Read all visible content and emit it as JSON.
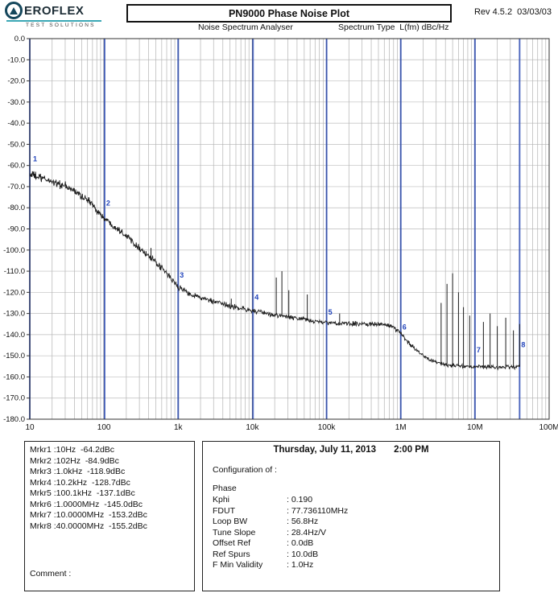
{
  "header": {
    "brand": "EROFLEX",
    "brand_tagline": "TEST SOLUTIONS",
    "title": "PN9000 Phase Noise Plot",
    "rev": "Rev 4.5.2  03/03/03",
    "analyser_label": "Noise Spectrum Analyser",
    "spectrum_type_label": "Spectrum Type  L(fm) dBc/Hz"
  },
  "chart_data": {
    "type": "line",
    "title": "PN9000 Phase Noise Plot",
    "xlabel": "",
    "ylabel": "L(fm) dBc/Hz",
    "x_scale": "log",
    "x_range": [
      10,
      100000000
    ],
    "ylim": [
      -180,
      0
    ],
    "grid": true,
    "x_ticks": [
      {
        "f": 10,
        "label": "10"
      },
      {
        "f": 100,
        "label": "100"
      },
      {
        "f": 1000,
        "label": "1k"
      },
      {
        "f": 10000,
        "label": "10k"
      },
      {
        "f": 100000,
        "label": "100k"
      },
      {
        "f": 1000000,
        "label": "1M"
      },
      {
        "f": 10000000,
        "label": "10M"
      },
      {
        "f": 100000000,
        "label": "100M"
      }
    ],
    "y_ticks": [
      "0.0",
      "-10.0",
      "-20.0",
      "-30.0",
      "-40.0",
      "-50.0",
      "-60.0",
      "-70.0",
      "-80.0",
      "-90.0",
      "-100.0",
      "-110.0",
      "-120.0",
      "-130.0",
      "-140.0",
      "-150.0",
      "-160.0",
      "-170.0",
      "-180.0"
    ],
    "measured_points": [
      [
        10,
        -64.2
      ],
      [
        102,
        -84.9
      ],
      [
        1000,
        -118.9
      ],
      [
        10200,
        -128.7
      ],
      [
        100100,
        -137.1
      ],
      [
        1000000,
        -145.0
      ],
      [
        10000000,
        -153.2
      ],
      [
        40000000,
        -155.2
      ]
    ],
    "curve_anchors": [
      [
        10,
        -64,
        2.4
      ],
      [
        14,
        -66,
        2.4
      ],
      [
        20,
        -67.5,
        2.3
      ],
      [
        30,
        -70,
        2.3
      ],
      [
        40,
        -72,
        2.2
      ],
      [
        63,
        -77,
        2.1
      ],
      [
        80,
        -81,
        2.0
      ],
      [
        100,
        -85,
        1.9
      ],
      [
        130,
        -88,
        1.9
      ],
      [
        200,
        -93,
        1.8
      ],
      [
        300,
        -99,
        1.8
      ],
      [
        500,
        -106,
        1.7
      ],
      [
        700,
        -111,
        1.7
      ],
      [
        1000,
        -117.5,
        1.6
      ],
      [
        1400,
        -120.5,
        1.5
      ],
      [
        2000,
        -122.5,
        1.5
      ],
      [
        3000,
        -124.5,
        1.5
      ],
      [
        5000,
        -126.5,
        1.4
      ],
      [
        7000,
        -127.5,
        1.4
      ],
      [
        10000,
        -128.7,
        1.4
      ],
      [
        15000,
        -130,
        1.35
      ],
      [
        25000,
        -131.2,
        1.35
      ],
      [
        40000,
        -132.3,
        1.3
      ],
      [
        60000,
        -133.3,
        1.3
      ],
      [
        100000,
        -134.4,
        1.3
      ],
      [
        150000,
        -134.8,
        1.25
      ],
      [
        250000,
        -134.9,
        1.25
      ],
      [
        400000,
        -134.9,
        1.25
      ],
      [
        600000,
        -135.3,
        1.2
      ],
      [
        800000,
        -136.5,
        1.2
      ],
      [
        1000000,
        -139.5,
        1.2
      ],
      [
        1250000,
        -143.5,
        1.15
      ],
      [
        1600000,
        -147,
        1.15
      ],
      [
        2000000,
        -149.8,
        1.1
      ],
      [
        2500000,
        -151.8,
        1.1
      ],
      [
        3200000,
        -153.3,
        1.1
      ],
      [
        4000000,
        -154.3,
        1.1
      ],
      [
        6000000,
        -154.9,
        1.1
      ],
      [
        10000000,
        -155.2,
        1.1
      ],
      [
        20000000,
        -155.4,
        1.1
      ],
      [
        40000000,
        -155.2,
        1.1
      ]
    ],
    "trace_fmax": 40000000,
    "spurs": [
      [
        62,
        -75
      ],
      [
        430,
        -99
      ],
      [
        5200,
        -123
      ],
      [
        21000,
        -113
      ],
      [
        25000,
        -110
      ],
      [
        31000,
        -119
      ],
      [
        55000,
        -121
      ],
      [
        150000,
        -130
      ],
      [
        3500000,
        -125
      ],
      [
        4200000,
        -116
      ],
      [
        5000000,
        -111
      ],
      [
        6000000,
        -120
      ],
      [
        7000000,
        -127
      ],
      [
        8500000,
        -131
      ],
      [
        13000000,
        -134
      ],
      [
        16000000,
        -130
      ],
      [
        20000000,
        -136
      ],
      [
        26000000,
        -132
      ],
      [
        33000000,
        -138
      ],
      [
        40000000,
        -135
      ]
    ],
    "marker_lines": [
      10,
      102,
      1000,
      10200,
      100100,
      1000000,
      10000000,
      40000000
    ],
    "marker_points": [
      {
        "n": "1",
        "f": 10.5,
        "db_label": -58
      },
      {
        "n": "2",
        "f": 102,
        "db_label": -79
      },
      {
        "n": "3",
        "f": 1000,
        "db_label": -113
      },
      {
        "n": "4",
        "f": 10200,
        "db_label": -123.5
      },
      {
        "n": "5",
        "f": 100100,
        "db_label": -130.5
      },
      {
        "n": "6",
        "f": 1000000,
        "db_label": -137.5
      },
      {
        "n": "7",
        "f": 10000000,
        "db_label": -148.5
      },
      {
        "n": "8",
        "f": 40000000,
        "db_label": -146
      }
    ],
    "colors": {
      "marker_line": "#3050b8",
      "trace": "#1c1c1c",
      "marker_label": "#2244bb",
      "grid_minor": "#b3b3b3",
      "grid_major": "#555555"
    },
    "legend": "none"
  },
  "markers_panel": {
    "rows": [
      {
        "name": "Mrkr1",
        "freq": "10Hz",
        "level": "-64.2dBc"
      },
      {
        "name": "Mrkr2",
        "freq": "102Hz",
        "level": "-84.9dBc"
      },
      {
        "name": "Mrkr3",
        "freq": "1.0kHz",
        "level": "-118.9dBc"
      },
      {
        "name": "Mrkr4",
        "freq": "10.2kHz",
        "level": "-128.7dBc"
      },
      {
        "name": "Mrkr5",
        "freq": "100.1kHz",
        "level": "-137.1dBc"
      },
      {
        "name": "Mrkr6",
        "freq": "1.0000MHz",
        "level": "-145.0dBc"
      },
      {
        "name": "Mrkr7",
        "freq": "10.0000MHz",
        "level": "-153.2dBc"
      },
      {
        "name": "Mrkr8",
        "freq": "40.0000MHz",
        "level": "-155.2dBc"
      }
    ],
    "comment": "Comment :"
  },
  "config_panel": {
    "date": "Thursday, July 11, 2013",
    "time": "2:00 PM",
    "heading": "Configuration of :",
    "device": "Phase",
    "rows": [
      {
        "label": "Kphi",
        "value": "0.190"
      },
      {
        "label": "FDUT",
        "value": "77.736110MHz"
      },
      {
        "label": "Loop BW",
        "value": "56.8Hz"
      },
      {
        "label": "Tune Slope",
        "value": "28.4Hz/V"
      },
      {
        "label": "Offset Ref",
        "value": "0.0dB"
      },
      {
        "label": "Ref Spurs",
        "value": "10.0dB"
      },
      {
        "label": "F Min Validity",
        "value": "1.0Hz"
      }
    ]
  }
}
